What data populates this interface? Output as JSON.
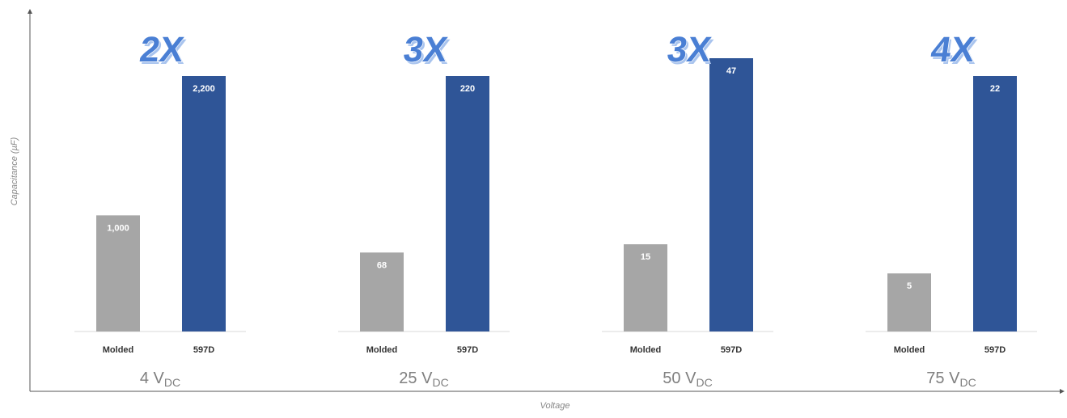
{
  "chart_data": {
    "type": "bar",
    "xlabel": "Voltage",
    "ylabel": "Capacitance (µF)",
    "series_names": [
      "Molded",
      "597D"
    ],
    "colors": {
      "Molded": "#a6a6a6",
      "597D": "#2f5597",
      "multiplier_fill": "#4a7fd4",
      "multiplier_outline": "#a9c4ee"
    },
    "groups": [
      {
        "voltage": "4",
        "unit_main": "V",
        "unit_sub": "DC",
        "multiplier": "2X",
        "bars": [
          {
            "category": "Molded",
            "value": 1000,
            "label": "1,000"
          },
          {
            "category": "597D",
            "value": 2200,
            "label": "2,200"
          }
        ]
      },
      {
        "voltage": "25",
        "unit_main": "V",
        "unit_sub": "DC",
        "multiplier": "3X",
        "bars": [
          {
            "category": "Molded",
            "value": 68,
            "label": "68"
          },
          {
            "category": "597D",
            "value": 220,
            "label": "220"
          }
        ]
      },
      {
        "voltage": "50",
        "unit_main": "V",
        "unit_sub": "DC",
        "multiplier": "3X",
        "bars": [
          {
            "category": "Molded",
            "value": 15,
            "label": "15"
          },
          {
            "category": "597D",
            "value": 47,
            "label": "47"
          }
        ]
      },
      {
        "voltage": "75",
        "unit_main": "V",
        "unit_sub": "DC",
        "multiplier": "4X",
        "bars": [
          {
            "category": "Molded",
            "value": 5,
            "label": "5"
          },
          {
            "category": "597D",
            "value": 22,
            "label": "22"
          }
        ]
      }
    ]
  }
}
